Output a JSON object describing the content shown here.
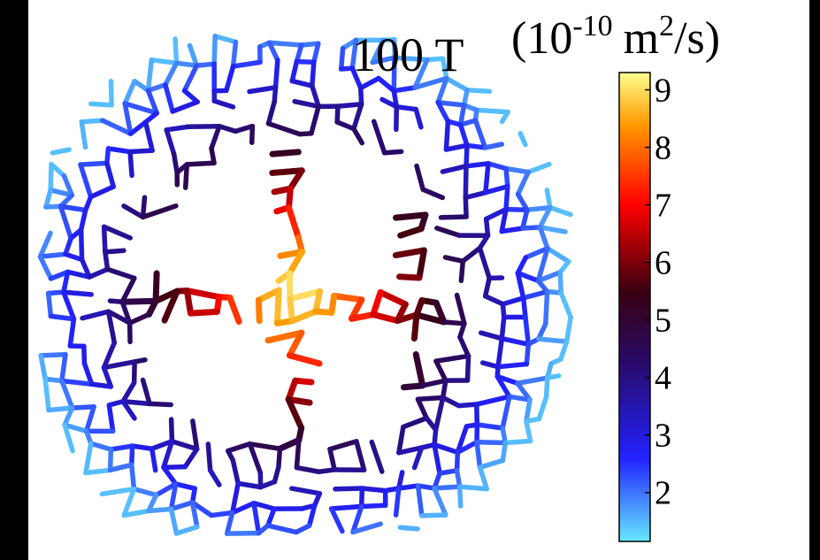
{
  "chart_data": {
    "type": "network-colormap",
    "title": "100 T",
    "units": {
      "base": "(10",
      "exponent": "-10",
      "unit": "m",
      "unit_power": "2",
      "tail": "/s)"
    },
    "clim": [
      1.15,
      9.3
    ],
    "cticks": [
      2,
      3,
      4,
      5,
      6,
      7,
      8,
      9
    ],
    "colormap": [
      {
        "value": 1.15,
        "color": "#66e8ff"
      },
      {
        "value": 2.6,
        "color": "#2222ff"
      },
      {
        "value": 4.3,
        "color": "#2a0a66"
      },
      {
        "value": 5.5,
        "color": "#3a0010"
      },
      {
        "value": 7.0,
        "color": "#ff0000"
      },
      {
        "value": 8.4,
        "color": "#ff9a00"
      },
      {
        "value": 9.3,
        "color": "#ffff90"
      }
    ]
  }
}
